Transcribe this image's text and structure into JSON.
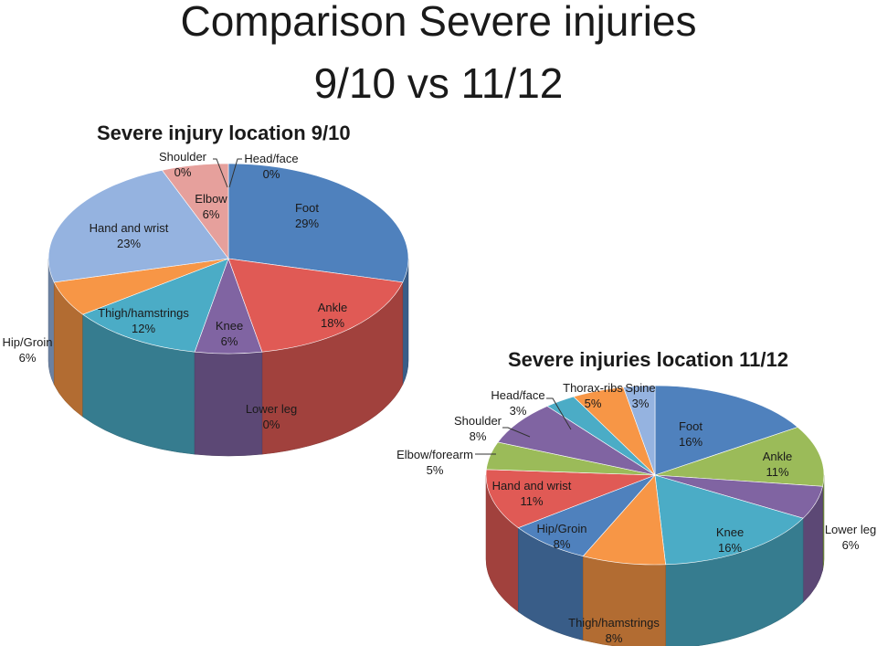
{
  "title": {
    "line1": "Comparison Severe injuries",
    "line2": "9/10 vs 11/12"
  },
  "chart_data": [
    {
      "type": "pie",
      "title": "Severe injury location 9/10",
      "slices": [
        {
          "name": "Head/face",
          "value": 0,
          "label": "0%",
          "color": "#c0504d"
        },
        {
          "name": "Foot",
          "value": 29,
          "label": "29%",
          "color": "#4f81bd"
        },
        {
          "name": "Ankle",
          "value": 18,
          "label": "18%",
          "color": "#e05a55"
        },
        {
          "name": "Lower leg",
          "value": 0,
          "label": "0%",
          "color": "#9bbb59"
        },
        {
          "name": "Knee",
          "value": 6,
          "label": "6%",
          "color": "#8064a2"
        },
        {
          "name": "Thigh/hamstrings",
          "value": 12,
          "label": "12%",
          "color": "#4bacc6"
        },
        {
          "name": "Hip/Groin",
          "value": 6,
          "label": "6%",
          "color": "#f79646"
        },
        {
          "name": "Hand and wrist",
          "value": 23,
          "label": "23%",
          "color": "#95b3e0"
        },
        {
          "name": "Elbow",
          "value": 6,
          "label": "6%",
          "color": "#e6a09c"
        },
        {
          "name": "Shoulder",
          "value": 0,
          "label": "0%",
          "color": "#c3d69b"
        }
      ]
    },
    {
      "type": "pie",
      "title": "Severe injuries location 11/12",
      "slices": [
        {
          "name": "Foot",
          "value": 16,
          "label": "16%",
          "color": "#4f81bd"
        },
        {
          "name": "Ankle",
          "value": 11,
          "label": "11%",
          "color": "#9bbb59"
        },
        {
          "name": "Lower leg",
          "value": 6,
          "label": "6%",
          "color": "#8064a2"
        },
        {
          "name": "Knee",
          "value": 16,
          "label": "16%",
          "color": "#4bacc6"
        },
        {
          "name": "Thigh/hamstrings",
          "value": 8,
          "label": "8%",
          "color": "#f79646"
        },
        {
          "name": "Hip/Groin",
          "value": 8,
          "label": "8%",
          "color": "#4f81bd"
        },
        {
          "name": "Hand and wrist",
          "value": 11,
          "label": "11%",
          "color": "#e05a55"
        },
        {
          "name": "Elbow/forearm",
          "value": 5,
          "label": "5%",
          "color": "#9bbb59"
        },
        {
          "name": "Shoulder",
          "value": 8,
          "label": "8%",
          "color": "#8064a2"
        },
        {
          "name": "Head/face",
          "value": 3,
          "label": "3%",
          "color": "#4bacc6"
        },
        {
          "name": "Thorax-ribs",
          "value": 5,
          "label": "5%",
          "color": "#f79646"
        },
        {
          "name": "Spine",
          "value": 3,
          "label": "3%",
          "color": "#95b3e0"
        }
      ]
    }
  ]
}
